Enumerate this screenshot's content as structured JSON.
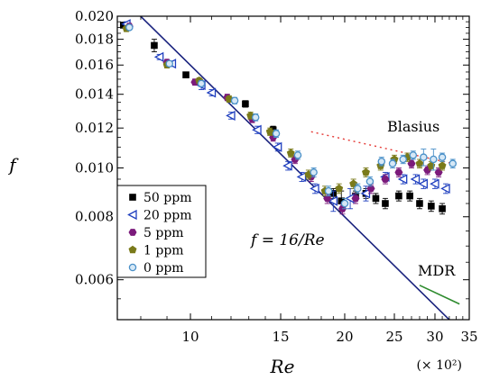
{
  "chart_data": {
    "type": "scatter",
    "x_scale": "log",
    "y_scale": "log",
    "xlim": [
      7.2,
      35
    ],
    "ylim": [
      0.005,
      0.02
    ],
    "xlabel": "Re",
    "ylabel": "f",
    "x_multiplier_label": "(× 10²)",
    "x_ticks": [
      10,
      15,
      20,
      25,
      30,
      35
    ],
    "x_tick_labels": [
      "10",
      "15",
      "20",
      "25",
      "30",
      "35"
    ],
    "y_ticks": [
      0.006,
      0.008,
      0.01,
      0.012,
      0.014,
      0.016,
      0.018,
      0.02
    ],
    "y_tick_labels": [
      "0.006",
      "0.008",
      "0.010",
      "0.012",
      "0.014",
      "0.016",
      "0.018",
      "0.020"
    ],
    "grid": false,
    "legend_position": "lower-left",
    "annotations": {
      "laminar": "f = 16/Re",
      "blasius": "Blasius",
      "mdr": "MDR"
    },
    "lines": {
      "laminar": {
        "color": "#1a237e",
        "x": [
          7.2,
          33.6
        ],
        "y": [
          0.0222,
          0.00476
        ]
      },
      "blasius": {
        "color": "#e53935",
        "x": [
          17.2,
          32.5
        ],
        "y": [
          0.0118,
          0.0102
        ]
      },
      "mdr": {
        "color": "#2e8b2e",
        "x": [
          28.0,
          33.5
        ],
        "y": [
          0.00585,
          0.00537
        ]
      }
    },
    "series": [
      {
        "name": "50 ppm",
        "marker": "square",
        "color": "#000000",
        "x": [
          7.4,
          8.5,
          9.8,
          12.8,
          14.5,
          19.0,
          19.7,
          21.0,
          22.0,
          23.0,
          24.0,
          25.5,
          26.8,
          28.0,
          29.5,
          31.0
        ],
        "y": [
          0.0192,
          0.0175,
          0.0153,
          0.0134,
          0.0119,
          0.0089,
          0.0086,
          0.0088,
          0.0089,
          0.0087,
          0.0085,
          0.0088,
          0.0088,
          0.0085,
          0.0084,
          0.0083
        ],
        "yerr": [
          0.0002,
          0.0005,
          0.0002,
          0.0002,
          0.0002,
          0.0002,
          0.0004,
          0.0002,
          0.0002,
          0.0002,
          0.0002,
          0.0002,
          0.0002,
          0.0002,
          0.0002,
          0.0002
        ]
      },
      {
        "name": "20 ppm",
        "marker": "triangle-left",
        "color": "#1f3fbf",
        "x": [
          7.5,
          8.7,
          9.2,
          10.5,
          11.0,
          12.0,
          13.5,
          14.8,
          15.5,
          16.5,
          17.5,
          19.0,
          20.5,
          22.0,
          24.0,
          26.0,
          27.5,
          28.5,
          30.0,
          31.5
        ],
        "y": [
          0.0193,
          0.0166,
          0.0161,
          0.0146,
          0.0141,
          0.0127,
          0.0119,
          0.011,
          0.0101,
          0.0096,
          0.0091,
          0.0086,
          0.0087,
          0.0089,
          0.0096,
          0.0095,
          0.0095,
          0.0093,
          0.0093,
          0.0091
        ],
        "yerr": [
          0.0002,
          0.0002,
          0.0002,
          0.0003,
          0.0002,
          0.0002,
          0.0002,
          0.0002,
          0.0002,
          0.0002,
          0.0002,
          0.0004,
          0.0004,
          0.0003,
          0.0002,
          0.0002,
          0.0002,
          0.0002,
          0.0002,
          0.0002
        ]
      },
      {
        "name": "5 ppm",
        "marker": "hexagon",
        "color": "#7b1a7b",
        "x": [
          7.6,
          9.0,
          10.2,
          11.8,
          13.2,
          14.5,
          16.0,
          17.2,
          18.5,
          19.8,
          21.0,
          22.5,
          24.0,
          25.5,
          27.0,
          29.0,
          30.5
        ],
        "y": [
          0.0191,
          0.0162,
          0.0148,
          0.0138,
          0.0125,
          0.0115,
          0.0104,
          0.0096,
          0.0087,
          0.0083,
          0.0087,
          0.0091,
          0.0095,
          0.0098,
          0.0102,
          0.0099,
          0.0098
        ],
        "yerr": [
          0.0002,
          0.0002,
          0.0002,
          0.0002,
          0.0002,
          0.0002,
          0.0002,
          0.0002,
          0.0002,
          0.0002,
          0.0002,
          0.0002,
          0.0002,
          0.0002,
          0.0002,
          0.0002,
          0.0002
        ]
      },
      {
        "name": "1 ppm",
        "marker": "pentagon",
        "color": "#7a7a1a",
        "x": [
          7.5,
          9.0,
          10.4,
          11.9,
          13.1,
          14.3,
          15.7,
          17.0,
          18.3,
          19.5,
          20.8,
          22.0,
          23.5,
          25.0,
          26.5,
          28.0,
          29.5,
          31.0
        ],
        "y": [
          0.0189,
          0.016,
          0.0149,
          0.0137,
          0.0127,
          0.0118,
          0.0107,
          0.0097,
          0.009,
          0.0091,
          0.0093,
          0.0098,
          0.0101,
          0.0104,
          0.0105,
          0.0102,
          0.0101,
          0.0101
        ],
        "yerr": [
          0.0002,
          0.0002,
          0.0002,
          0.0002,
          0.0002,
          0.0002,
          0.0002,
          0.0002,
          0.0002,
          0.0002,
          0.0002,
          0.0002,
          0.0002,
          0.0002,
          0.0002,
          0.0002,
          0.0002,
          0.0002
        ]
      },
      {
        "name": "0 ppm",
        "marker": "circle",
        "color": "#4a90c8",
        "x": [
          7.6,
          9.1,
          10.5,
          12.2,
          13.4,
          14.7,
          16.2,
          17.4,
          18.6,
          20.0,
          21.2,
          22.4,
          23.6,
          24.8,
          26.0,
          27.2,
          28.5,
          29.8,
          31.0,
          32.5
        ],
        "y": [
          0.019,
          0.0161,
          0.0147,
          0.0136,
          0.0126,
          0.0117,
          0.0106,
          0.0098,
          0.009,
          0.0085,
          0.0091,
          0.0094,
          0.0103,
          0.0102,
          0.0104,
          0.0106,
          0.0105,
          0.0104,
          0.0105,
          0.0102
        ],
        "yerr": [
          0.0002,
          0.0002,
          0.0002,
          0.0002,
          0.0002,
          0.0002,
          0.0002,
          0.0002,
          0.0002,
          0.0002,
          0.0002,
          0.0002,
          0.0002,
          0.0002,
          0.0002,
          0.0002,
          0.0004,
          0.0005,
          0.0002,
          0.0002
        ]
      }
    ]
  }
}
